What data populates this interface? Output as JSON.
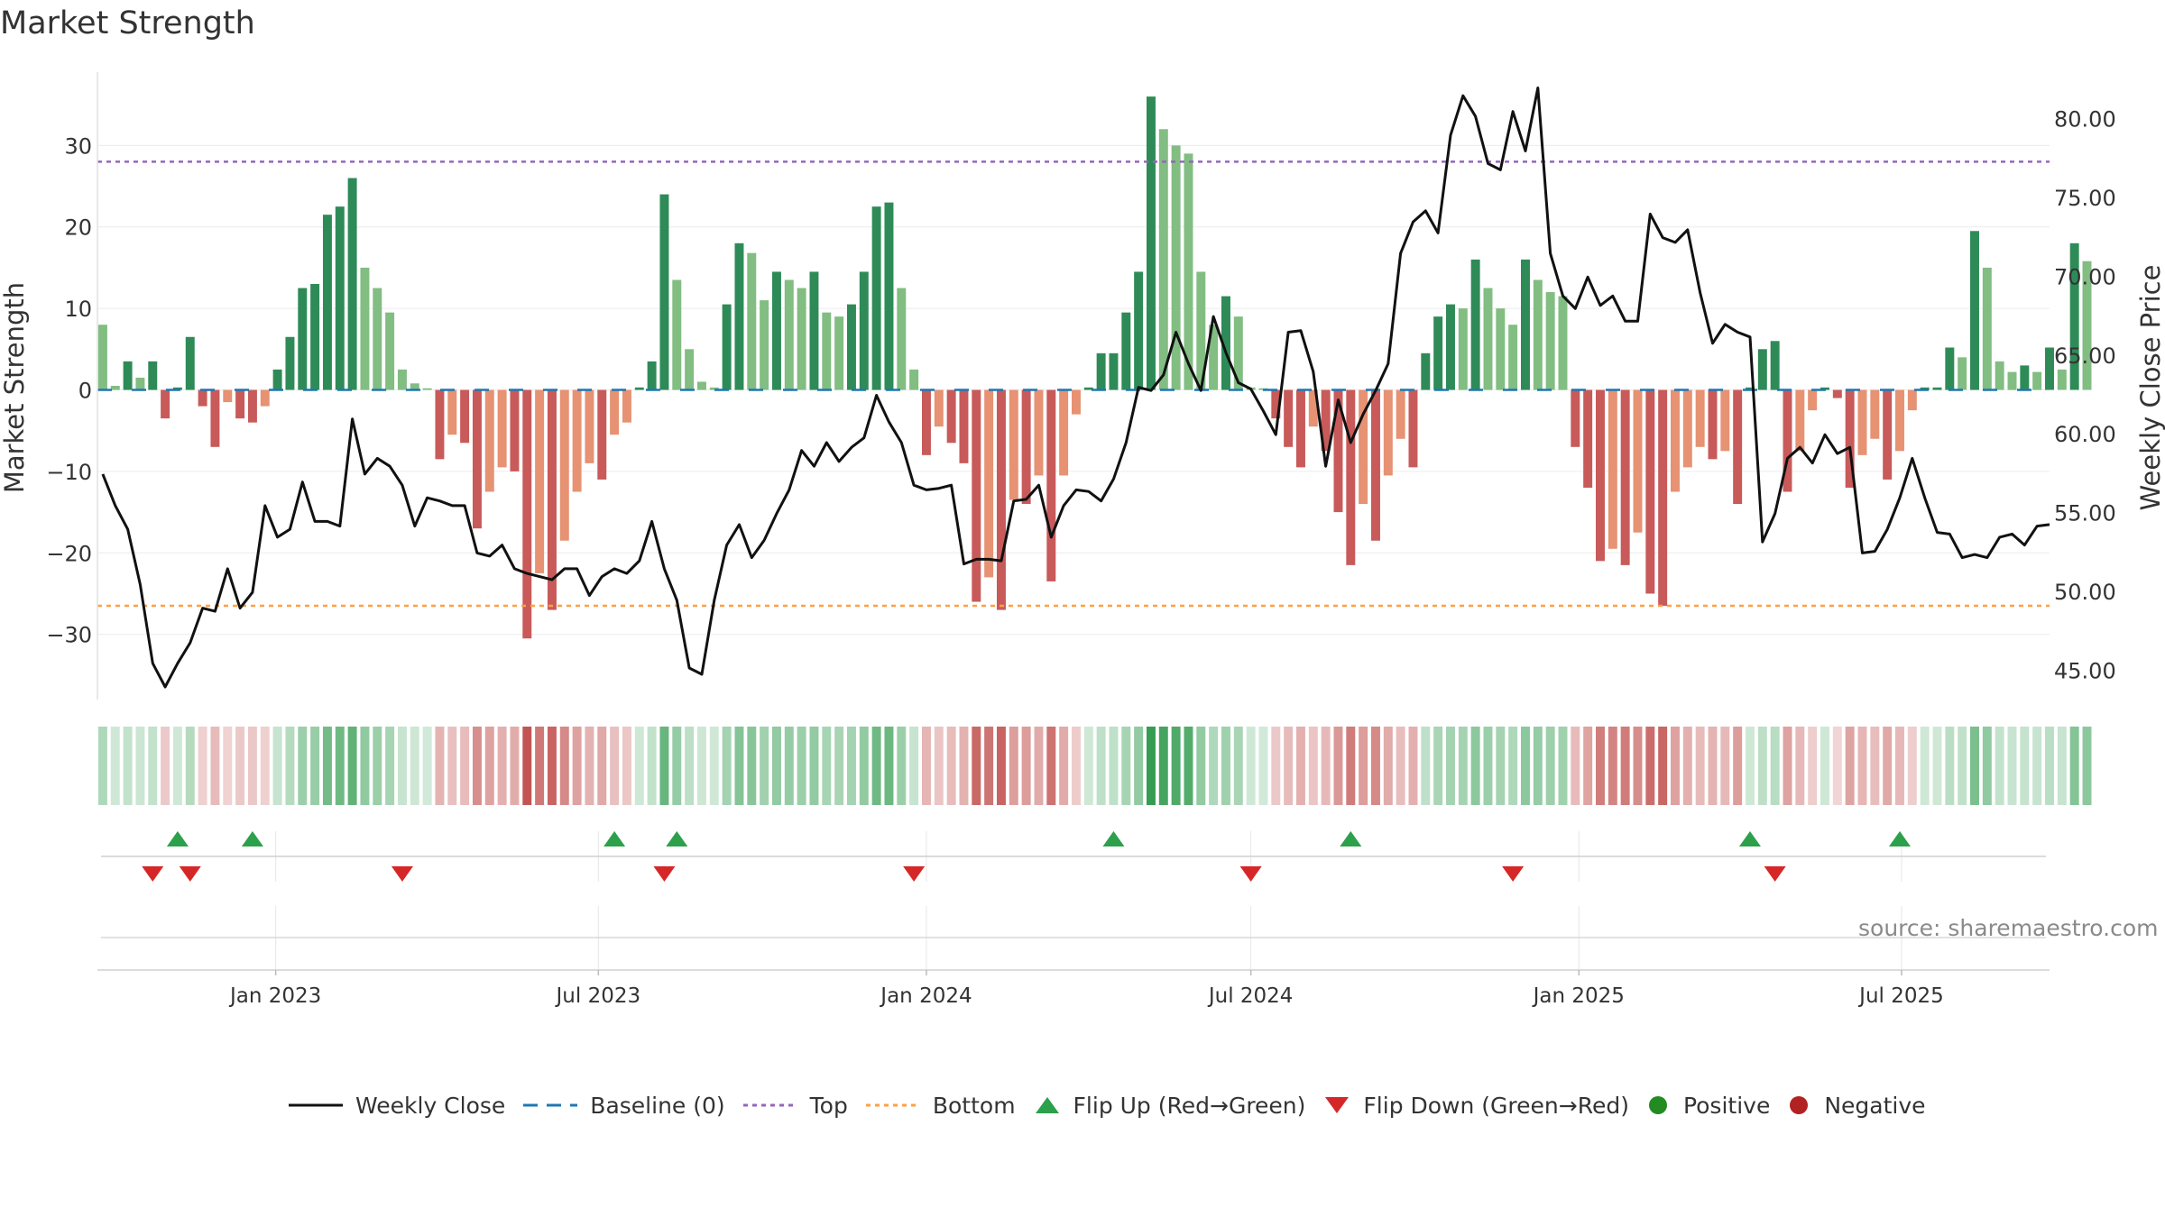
{
  "title": "Market Strength",
  "source": "source: sharemaestro.com",
  "colors": {
    "strong_green": "#2e8b57",
    "light_green": "#82bd82",
    "strong_red": "#c85a5a",
    "light_red": "#e69273",
    "price_line": "#111111",
    "baseline": "#1f77b4",
    "top_line": "#9467bd",
    "bottom_line": "#ff9f40",
    "flip_up": "#2ca04b",
    "flip_down": "#d62728",
    "positive": "#228b22",
    "negative": "#b22222"
  },
  "legend": [
    {
      "key": "weekly_close",
      "label": "Weekly Close"
    },
    {
      "key": "baseline",
      "label": "Baseline (0)"
    },
    {
      "key": "top",
      "label": "Top"
    },
    {
      "key": "bottom",
      "label": "Bottom"
    },
    {
      "key": "flip_up",
      "label": "Flip Up (Red→Green)"
    },
    {
      "key": "flip_down",
      "label": "Flip Down (Green→Red)"
    },
    {
      "key": "positive",
      "label": "Positive"
    },
    {
      "key": "negative",
      "label": "Negative"
    }
  ],
  "chart_data": {
    "type": "bar",
    "title": "Market Strength",
    "ylabel_left": "Market Strength",
    "ylabel_right": "Weekly Close Price",
    "ylim_left": [
      -38,
      39
    ],
    "ylim_right": [
      43.2,
      83.0
    ],
    "yticks_left": [
      30,
      20,
      10,
      0,
      -10,
      -20,
      -30
    ],
    "ytick_labels_left": [
      "30",
      "20",
      "10",
      "0",
      "−10",
      "−20",
      "−30"
    ],
    "yticks_right": [
      80,
      75,
      70,
      65,
      60,
      55,
      50,
      45
    ],
    "ytick_labels_right": [
      "80.00",
      "75.00",
      "70.00",
      "65.00",
      "60.00",
      "55.00",
      "50.00",
      "45.00"
    ],
    "x_start": "2022-09-23",
    "x_end": "2025-09-22",
    "x_ticks": [
      {
        "date": "2023-01-01",
        "label": "Jan 2023"
      },
      {
        "date": "2023-07-01",
        "label": "Jul 2023"
      },
      {
        "date": "2024-01-01",
        "label": "Jan 2024"
      },
      {
        "date": "2024-07-01",
        "label": "Jul 2024"
      },
      {
        "date": "2025-01-01",
        "label": "Jan 2025"
      },
      {
        "date": "2025-07-01",
        "label": "Jul 2025"
      }
    ],
    "top_threshold": 28,
    "bottom_threshold": -26.5,
    "baseline": 0,
    "first_week": "2022-09-26",
    "week_step_days": 7,
    "strength": [
      8,
      0.5,
      3.5,
      1.5,
      3.5,
      -3.5,
      0.3,
      6.5,
      -2,
      -7,
      -1.5,
      -3.5,
      -4,
      -2,
      2.5,
      6.5,
      12.5,
      13,
      21.5,
      22.5,
      26,
      15,
      12.5,
      9.5,
      2.5,
      0.8,
      0.2,
      -8.5,
      -5.5,
      -6.5,
      -17,
      -12.5,
      -9.5,
      -10,
      -30.5,
      -22.5,
      -27,
      -18.5,
      -12.5,
      -9,
      -11,
      -5.5,
      -4,
      0.3,
      3.5,
      24,
      13.5,
      5,
      1,
      0.3,
      10.5,
      18,
      16.8,
      11,
      14.5,
      13.5,
      12.5,
      14.5,
      9.5,
      9,
      10.5,
      14.5,
      22.5,
      23,
      12.5,
      2.5,
      -8,
      -4.5,
      -6.5,
      -9,
      -26,
      -23,
      -27,
      -13.5,
      -14,
      -10.5,
      -23.5,
      -10.5,
      -3,
      0.3,
      4.5,
      4.5,
      9.5,
      14.5,
      36,
      32,
      30,
      29,
      14.5,
      8,
      11.5,
      9,
      0.3,
      0.2,
      -3.5,
      -7,
      -9.5,
      -4.5,
      -7.5,
      -15,
      -21.5,
      -14,
      -18.5,
      -10.5,
      -6,
      -9.5,
      4.5,
      9,
      10.5,
      10,
      16,
      12.5,
      10,
      8,
      16,
      13.5,
      12,
      11.5,
      -7,
      -12,
      -21,
      -19.5,
      -21.5,
      -17.5,
      -25,
      -26.5,
      -12.5,
      -9.5,
      -7,
      -8.5,
      -7.5,
      -14,
      0.3,
      5,
      6,
      -12.5,
      -7.5,
      -2.5,
      0.3,
      -1,
      -12,
      -8,
      -6,
      -11,
      -7.5,
      -2.5,
      0.3,
      0.3,
      5.2,
      4,
      19.5,
      15,
      3.5,
      2.2,
      3,
      2.2,
      5.2,
      2.5,
      18,
      15.8
    ],
    "weekly_close": [
      57.5,
      55.5,
      54,
      50.5,
      45.5,
      44,
      45.5,
      46.8,
      49,
      48.8,
      51.5,
      49,
      50,
      55.5,
      53.5,
      54,
      57,
      54.5,
      54.5,
      54.2,
      61,
      57.5,
      58.5,
      58,
      56.8,
      54.2,
      56,
      55.8,
      55.5,
      55.5,
      52.5,
      52.3,
      53,
      51.5,
      51.2,
      51,
      50.8,
      51.5,
      51.5,
      49.8,
      51,
      51.5,
      51.2,
      52,
      54.5,
      51.5,
      49.5,
      45.2,
      44.8,
      49.5,
      53,
      54.3,
      52.2,
      53.3,
      55,
      56.5,
      59,
      58,
      59.5,
      58.3,
      59.2,
      59.8,
      62.5,
      60.8,
      59.5,
      56.8,
      56.5,
      56.6,
      56.8,
      51.8,
      52.1,
      52.1,
      52,
      55.8,
      55.9,
      56.8,
      53.5,
      55.5,
      56.5,
      56.4,
      55.8,
      57.2,
      59.5,
      63,
      62.8,
      63.8,
      66.5,
      64.5,
      62.8,
      67.5,
      65.2,
      63.3,
      62.9,
      61.5,
      60,
      66.5,
      66.6,
      64,
      58,
      62.2,
      59.5,
      61.3,
      62.8,
      64.5,
      71.5,
      73.5,
      74.2,
      72.8,
      79,
      81.5,
      80.2,
      77.2,
      76.8,
      80.5,
      78,
      82,
      71.5,
      68.8,
      68,
      70,
      68.2,
      68.8,
      67.2,
      67.2,
      74,
      72.5,
      72.2,
      73,
      69,
      65.8,
      67,
      66.5,
      66.2,
      53.2,
      55,
      58.5,
      59.2,
      58.2,
      60,
      58.8,
      59.2,
      52.5,
      52.6,
      54,
      56,
      58.5,
      56,
      53.8,
      53.7,
      52.2,
      52.4,
      52.2,
      53.5,
      53.7,
      53,
      54.2,
      54.3
    ]
  },
  "flip_markers": {
    "up": [
      "2022-11-07",
      "2022-12-19",
      "2023-07-10",
      "2023-08-14",
      "2024-04-15",
      "2024-08-26",
      "2025-04-07",
      "2025-06-30"
    ],
    "down": [
      "2022-10-24",
      "2022-11-14",
      "2023-03-13",
      "2023-08-07",
      "2023-12-25",
      "2024-07-01",
      "2024-11-25",
      "2025-04-21"
    ]
  }
}
